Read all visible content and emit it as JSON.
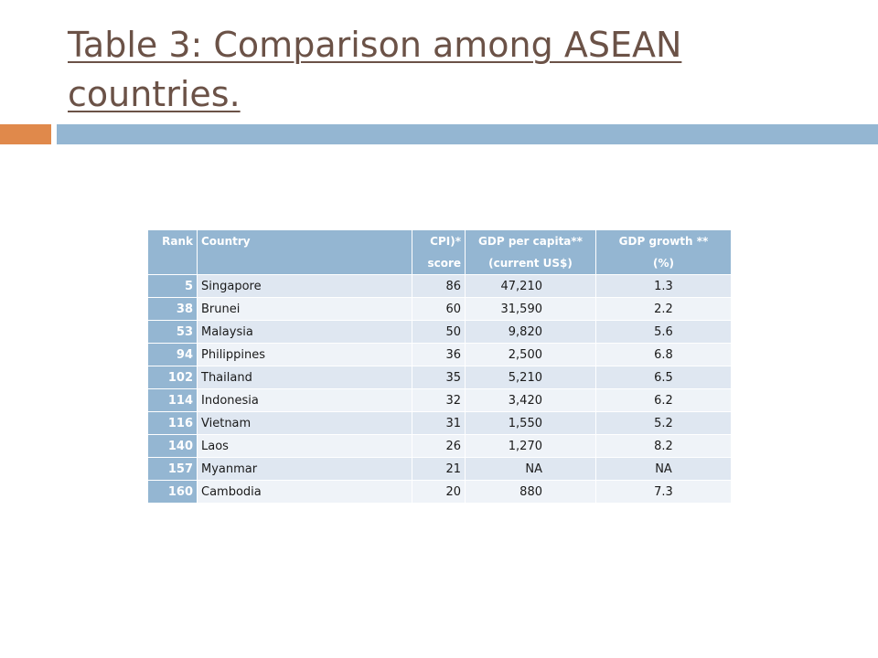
{
  "slide": {
    "title": "Table  3: Comparison among ASEAN countries.",
    "accent_left_color": "#e0894b",
    "accent_right_color": "#94b6d2"
  },
  "table": {
    "header_color": "#94b6d2",
    "columns": [
      {
        "line1": "Rank",
        "line2": ""
      },
      {
        "line1": "Country",
        "line2": ""
      },
      {
        "line1": "CPI)*",
        "line2": "score"
      },
      {
        "line1": "GDP per capita**",
        "line2": "(current US$)"
      },
      {
        "line1": "GDP growth **",
        "line2": "(%)"
      }
    ],
    "rows": [
      {
        "rank": "5",
        "country": "Singapore",
        "cpi": "86",
        "gdp_per_capita": "47,210",
        "gdp_growth": "1.3"
      },
      {
        "rank": "38",
        "country": "Brunei",
        "cpi": "60",
        "gdp_per_capita": "31,590",
        "gdp_growth": "2.2"
      },
      {
        "rank": "53",
        "country": "Malaysia",
        "cpi": "50",
        "gdp_per_capita": "9,820",
        "gdp_growth": "5.6"
      },
      {
        "rank": "94",
        "country": "Philippines",
        "cpi": "36",
        "gdp_per_capita": "2,500",
        "gdp_growth": "6.8"
      },
      {
        "rank": "102",
        "country": "Thailand",
        "cpi": "35",
        "gdp_per_capita": "5,210",
        "gdp_growth": "6.5"
      },
      {
        "rank": "114",
        "country": "Indonesia",
        "cpi": "32",
        "gdp_per_capita": "3,420",
        "gdp_growth": "6.2"
      },
      {
        "rank": "116",
        "country": "Vietnam",
        "cpi": "31",
        "gdp_per_capita": "1,550",
        "gdp_growth": "5.2"
      },
      {
        "rank": "140",
        "country": "Laos",
        "cpi": "26",
        "gdp_per_capita": "1,270",
        "gdp_growth": "8.2"
      },
      {
        "rank": "157",
        "country": "Myanmar",
        "cpi": "21",
        "gdp_per_capita": "NA",
        "gdp_growth": "NA"
      },
      {
        "rank": "160",
        "country": "Cambodia",
        "cpi": "20",
        "gdp_per_capita": "880",
        "gdp_growth": "7.3"
      }
    ]
  }
}
